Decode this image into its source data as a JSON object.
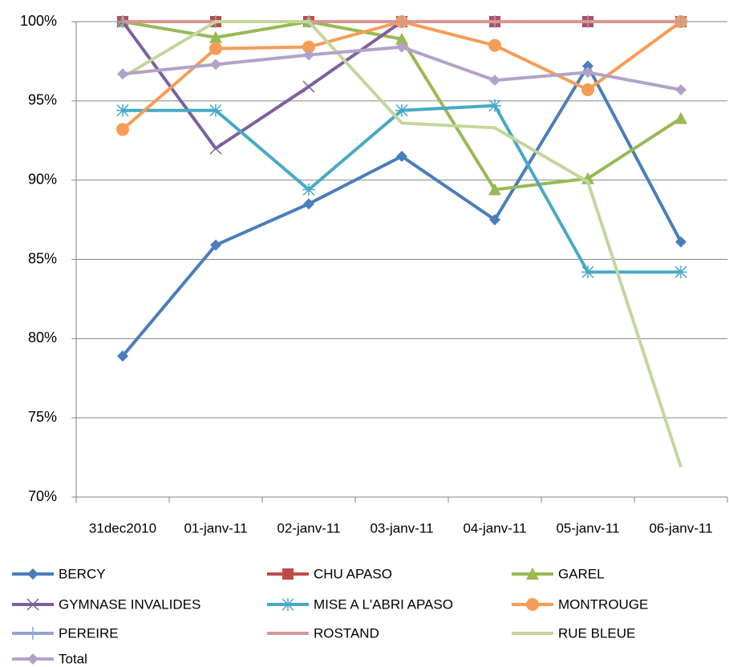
{
  "chart_data": {
    "type": "line",
    "categories": [
      "31dec2010",
      "01-janv-11",
      "02-janv-11",
      "03-janv-11",
      "04-janv-11",
      "05-janv-11",
      "06-janv-11"
    ],
    "ylim": [
      70,
      100
    ],
    "yticks": [
      {
        "value": 70,
        "label": "70%"
      },
      {
        "value": 75,
        "label": "75%"
      },
      {
        "value": 80,
        "label": "80%"
      },
      {
        "value": 85,
        "label": "85%"
      },
      {
        "value": 90,
        "label": "90%"
      },
      {
        "value": 95,
        "label": "95%"
      },
      {
        "value": 100,
        "label": "100%"
      }
    ],
    "grid": true,
    "legend": "bottom",
    "series": [
      {
        "name": "BERCY",
        "color": "#4a7ebb",
        "marker": "diamond",
        "values": [
          78.9,
          85.9,
          88.5,
          91.5,
          87.5,
          97.2,
          86.1
        ]
      },
      {
        "name": "CHU APASO",
        "color": "#be4b48",
        "marker": "square",
        "values": [
          100,
          100,
          100,
          100,
          100,
          100,
          100
        ]
      },
      {
        "name": "GAREL",
        "color": "#98b954",
        "marker": "triangle",
        "values": [
          100,
          99.0,
          100,
          98.9,
          89.4,
          90.1,
          93.9
        ]
      },
      {
        "name": "GYMNASE INVALIDES",
        "color": "#7d5fa0",
        "marker": "x",
        "values": [
          100,
          92.0,
          95.9,
          100,
          100,
          100,
          100
        ]
      },
      {
        "name": "MISE A L'ABRI APASO",
        "color": "#46aac5",
        "marker": "star",
        "values": [
          94.4,
          94.4,
          89.4,
          94.4,
          94.7,
          84.2,
          84.2
        ]
      },
      {
        "name": "MONTROUGE",
        "color": "#f59d56",
        "marker": "circle",
        "values": [
          93.2,
          98.3,
          98.4,
          100,
          98.5,
          95.7,
          100
        ]
      },
      {
        "name": "PEREIRE",
        "color": "#8ea6d3",
        "marker": "plus",
        "values": [
          100,
          100,
          100,
          100,
          100,
          100,
          100
        ]
      },
      {
        "name": "ROSTAND",
        "color": "#d99694",
        "marker": "none",
        "values": [
          100,
          100,
          100,
          100,
          100,
          100,
          100
        ]
      },
      {
        "name": "RUE BLEUE",
        "color": "#c3d69b",
        "marker": "none",
        "values": [
          96.5,
          100,
          100,
          93.6,
          93.3,
          89.9,
          71.9
        ]
      },
      {
        "name": "Total",
        "color": "#b3a2c7",
        "marker": "diamond",
        "values": [
          96.7,
          97.3,
          97.9,
          98.4,
          96.3,
          96.8,
          95.7
        ]
      }
    ]
  }
}
